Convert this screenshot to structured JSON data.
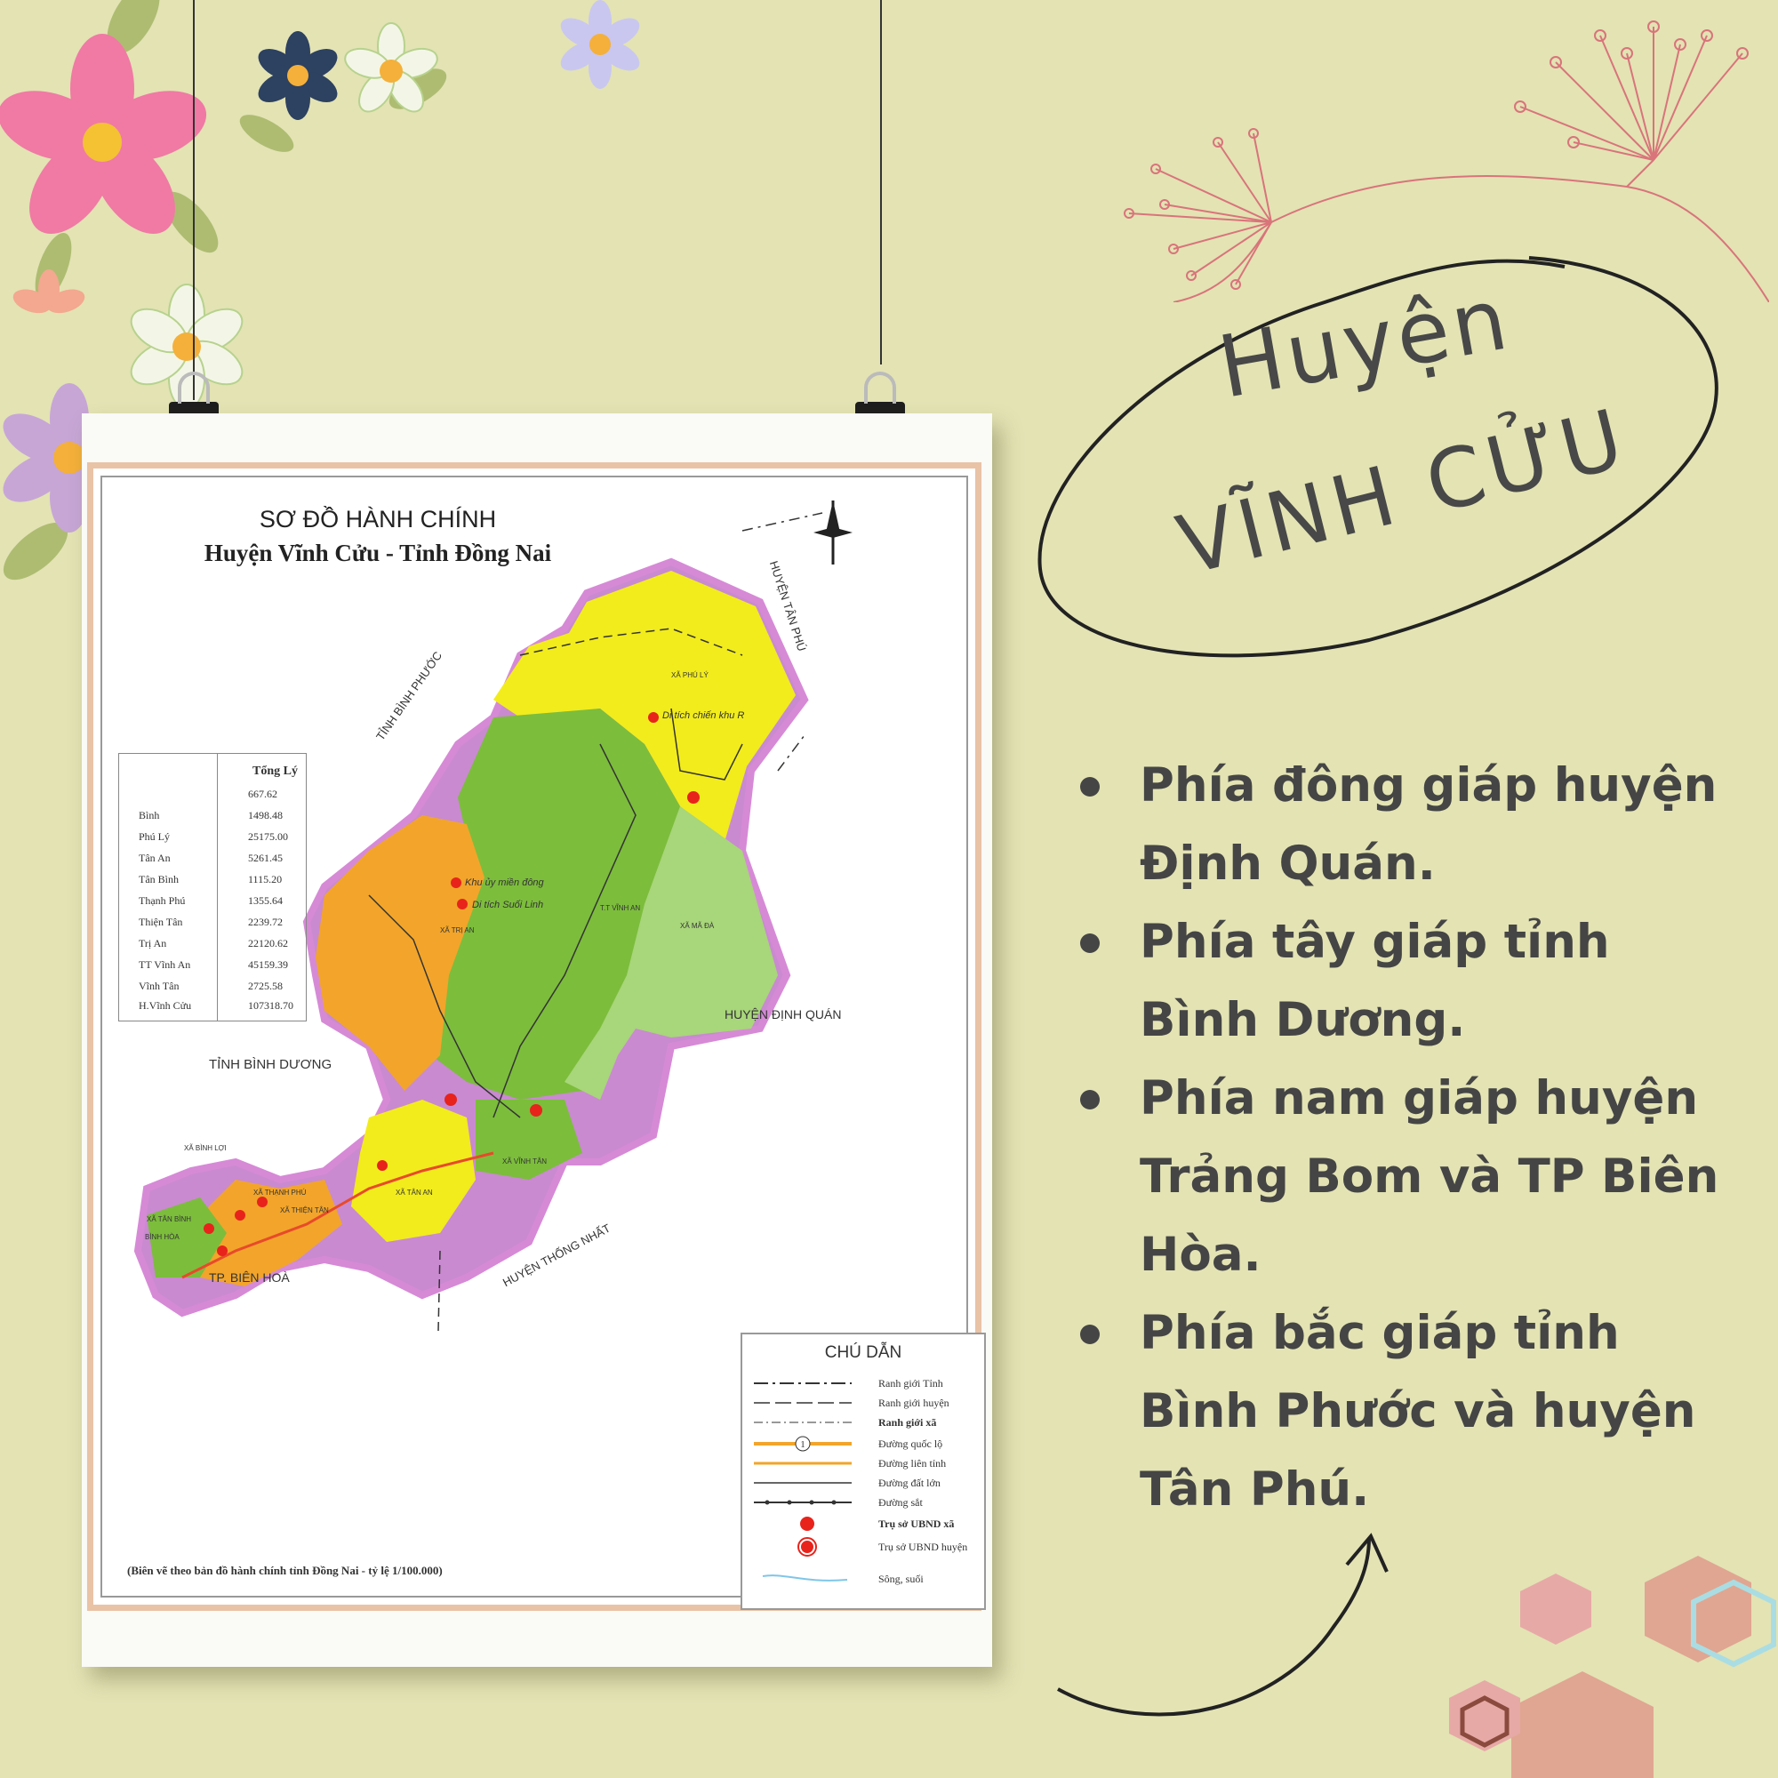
{
  "poster": {
    "map_title_line1": "SƠ ĐỒ HÀNH CHÍNH",
    "map_title_line2": "Huyện Vĩnh Cửu - Tỉnh Đồng Nai",
    "places": {
      "tan_phu": "HUYỆN TÂN PHÚ",
      "binh_phuoc": "TỈNH BÌNH PHƯỚC",
      "binh_duong": "TỈNH BÌNH DƯƠNG",
      "dinh_quan": "HUYỆN ĐỊNH QUÁN",
      "thong_nhat": "HUYỆN THỐNG NHẤT",
      "bien_hoa": "TP. BIÊN HOÀ"
    },
    "map_labels": {
      "phu_ly": "XÃ PHÚ LÝ",
      "vinh_an": "T.T VĨNH AN",
      "ma_da": "XÃ MÃ ĐÀ",
      "tri_an": "XÃ TRỊ AN",
      "tan_an": "XÃ TÂN AN",
      "thien_tan": "XÃ THIỆN TÂN",
      "vinh_tan": "XÃ VĨNH TÂN",
      "binh_loi": "XÃ BÌNH LỢI",
      "tan_binh": "XÃ TÂN BÌNH",
      "thanh_phu": "XÃ THẠNH PHÚ",
      "bhoa": "BÌNH HÒA",
      "di_tich_r": "Di tích chiến khu R",
      "khu_uy": "Khu ủy miền đông",
      "suoi_linh": "Di tích Suối Linh"
    },
    "table": {
      "header": "Tổng Lý",
      "rows": [
        {
          "name": "",
          "value": "667.62"
        },
        {
          "name": "Bình",
          "value": "1498.48"
        },
        {
          "name": "Phú Lý",
          "value": "25175.00"
        },
        {
          "name": "Tân An",
          "value": "5261.45"
        },
        {
          "name": "Tân Bình",
          "value": "1115.20"
        },
        {
          "name": "Thạnh Phú",
          "value": "1355.64"
        },
        {
          "name": "Thiện Tân",
          "value": "2239.72"
        },
        {
          "name": "Trị An",
          "value": "22120.62"
        },
        {
          "name": "TT Vĩnh An",
          "value": "45159.39"
        },
        {
          "name": "Vĩnh Tân",
          "value": "2725.58"
        },
        {
          "name": "H.Vĩnh Cửu",
          "value": "107318.70"
        }
      ]
    },
    "legend": {
      "title": "CHÚ DẪN",
      "items": [
        {
          "label": "Ranh giới Tỉnh",
          "style": "dashdot-thick"
        },
        {
          "label": "Ranh giới huyện",
          "style": "dash-long"
        },
        {
          "label": "Ranh giới xã",
          "style": "dashdot-thin"
        },
        {
          "label": "Đường quốc lộ",
          "style": "orange-route"
        },
        {
          "label": "Đường liên tỉnh",
          "style": "orange-thin"
        },
        {
          "label": "Đường đất lớn",
          "style": "black-line"
        },
        {
          "label": "Đường sắt",
          "style": "rail"
        },
        {
          "label": "Trụ sở UBND xã",
          "style": "red-dot"
        },
        {
          "label": "Trụ sở UBND huyện",
          "style": "red-dot-ring"
        },
        {
          "label": "Sông, suối",
          "style": "river"
        }
      ],
      "route_number": "1"
    },
    "note": "(Biên vẽ theo bản đồ hành chính tỉnh Đồng Nai - tỷ lệ 1/100.000)"
  },
  "heading": {
    "line1": "Huyện",
    "line2": "VĨNH CỬU"
  },
  "facts": [
    "Phía đông giáp huyện Định Quán.",
    "Phía tây giáp tỉnh Bình Dương.",
    "Phía nam giáp huyện Trảng Bom và  TP Biên Hòa.",
    "Phía bắc giáp tỉnh Bình Phước và huyện Tân Phú."
  ],
  "colors": {
    "background": "#e3e3b4",
    "text": "#454545",
    "pink_accent": "#d9747a",
    "map_yellow": "#f2ec1c",
    "map_green": "#7cbd3c",
    "map_light_green": "#a8d67a",
    "map_orange": "#f2a52a",
    "map_purple": "#c98ad0"
  }
}
